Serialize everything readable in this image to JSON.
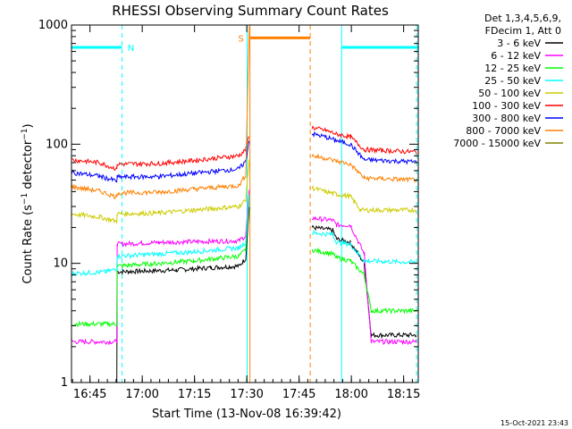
{
  "chart_data": {
    "type": "line",
    "title": "RHESSI Observing Summary Count Rates",
    "xlabel": "Start Time (13-Nov-08 16:39:42)",
    "ylabel_main": "Count Rate (s",
    "ylabel_sup1": "−1",
    "ylabel_mid": " detector",
    "ylabel_sup2": "−1",
    "ylabel_end": ")",
    "y_scale": "log",
    "ylim": [
      1,
      1000
    ],
    "x_unit": "minutes from 16:39:42",
    "xlim": [
      0,
      99.5
    ],
    "x_ticks": [
      {
        "label": "16:45",
        "value": 5.3
      },
      {
        "label": "17:00",
        "value": 20.3
      },
      {
        "label": "17:15",
        "value": 35.3
      },
      {
        "label": "17:30",
        "value": 50.3
      },
      {
        "label": "17:45",
        "value": 65.3
      },
      {
        "label": "18:00",
        "value": 80.3
      },
      {
        "label": "18:15",
        "value": 95.3
      }
    ],
    "y_ticks": [
      {
        "label": "1",
        "value": 1
      },
      {
        "label": "10",
        "value": 10
      },
      {
        "label": "100",
        "value": 100
      },
      {
        "label": "1000",
        "value": 1000
      }
    ],
    "legend_header": [
      "Det 1,3,4,5,6,9,",
      "FDecim 1, Att 0"
    ],
    "legend_position": "right",
    "footer_date": "15-Oct-2021 23:43",
    "series": [
      {
        "name": "3 - 6 keV",
        "color": "#000000",
        "segments": [
          [
            [
              0,
              1.0
            ],
            [
              13,
              1.0
            ],
            [
              13.1,
              8.5
            ],
            [
              20,
              8.6
            ],
            [
              30,
              8.8
            ],
            [
              40,
              9.2
            ],
            [
              48,
              9.5
            ],
            [
              50,
              11
            ],
            [
              51,
              30
            ]
          ],
          [
            [
              69,
              20
            ],
            [
              75,
              19
            ],
            [
              76,
              16
            ],
            [
              80,
              15
            ],
            [
              84,
              10
            ],
            [
              86,
              2.5
            ],
            [
              99,
              2.5
            ]
          ]
        ]
      },
      {
        "name": "6 - 12 keV",
        "color": "#ff00ff",
        "segments": [
          [
            [
              0,
              2.2
            ],
            [
              13,
              2.2
            ],
            [
              13.1,
              14.5
            ],
            [
              25,
              15
            ],
            [
              35,
              15.2
            ],
            [
              48,
              15.5
            ],
            [
              50,
              17
            ],
            [
              51,
              40
            ]
          ],
          [
            [
              69,
              24
            ],
            [
              75,
              23
            ],
            [
              76,
              21
            ],
            [
              80,
              21
            ],
            [
              84,
              12
            ],
            [
              86,
              2.2
            ],
            [
              99,
              2.2
            ]
          ]
        ]
      },
      {
        "name": "12 - 25 keV",
        "color": "#00ff00",
        "segments": [
          [
            [
              0,
              3.1
            ],
            [
              13,
              3.1
            ],
            [
              13.1,
              9.5
            ],
            [
              25,
              10
            ],
            [
              35,
              10.5
            ],
            [
              48,
              11.5
            ],
            [
              50,
              13
            ],
            [
              51,
              35
            ]
          ],
          [
            [
              69,
              13
            ],
            [
              75,
              12
            ],
            [
              76,
              11.2
            ],
            [
              80,
              10.5
            ],
            [
              84,
              8
            ],
            [
              86,
              4
            ],
            [
              99,
              4
            ]
          ]
        ]
      },
      {
        "name": "25 - 50 keV",
        "color": "#00ffff",
        "segments": [
          [
            [
              0,
              8.2
            ],
            [
              10,
              8.5
            ],
            [
              13,
              9
            ],
            [
              13.1,
              11.5
            ],
            [
              25,
              12
            ],
            [
              35,
              12.5
            ],
            [
              48,
              13.5
            ],
            [
              50,
              15
            ],
            [
              51,
              38
            ]
          ],
          [
            [
              69,
              18
            ],
            [
              75,
              17.5
            ],
            [
              76,
              15
            ],
            [
              80,
              14.5
            ],
            [
              84,
              10.5
            ],
            [
              99,
              10.2
            ]
          ]
        ]
      },
      {
        "name": "50 - 100 keV",
        "color": "#cccc00",
        "segments": [
          [
            [
              0,
              26
            ],
            [
              8,
              24.5
            ],
            [
              13,
              22.5
            ],
            [
              13.1,
              26
            ],
            [
              25,
              26.5
            ],
            [
              35,
              28
            ],
            [
              48,
              30
            ],
            [
              50,
              34
            ],
            [
              51,
              75
            ]
          ],
          [
            [
              69,
              43
            ],
            [
              73,
              40
            ],
            [
              76,
              38
            ],
            [
              80,
              36.5
            ],
            [
              83,
              28
            ],
            [
              99,
              28
            ]
          ]
        ]
      },
      {
        "name": "100 - 300 keV",
        "color": "#ff0000",
        "segments": [
          [
            [
              0,
              74
            ],
            [
              8,
              70
            ],
            [
              13,
              62
            ],
            [
              13.1,
              68
            ],
            [
              25,
              69
            ],
            [
              35,
              73
            ],
            [
              48,
              80
            ],
            [
              50,
              90
            ],
            [
              51,
              120
            ]
          ],
          [
            [
              69,
              138
            ],
            [
              73,
              130
            ],
            [
              76,
              122
            ],
            [
              80,
              115
            ],
            [
              84,
              90
            ],
            [
              99,
              86
            ]
          ]
        ]
      },
      {
        "name": "300 - 800 keV",
        "color": "#0000ff",
        "segments": [
          [
            [
              0,
              58
            ],
            [
              8,
              54
            ],
            [
              13,
              49
            ],
            [
              13.1,
              53
            ],
            [
              25,
              53.5
            ],
            [
              35,
              57
            ],
            [
              48,
              62
            ],
            [
              50,
              72
            ],
            [
              51,
              110
            ]
          ],
          [
            [
              69,
              122
            ],
            [
              73,
              115
            ],
            [
              76,
              107
            ],
            [
              80,
              100
            ],
            [
              84,
              74
            ],
            [
              99,
              71
            ]
          ]
        ]
      },
      {
        "name": "800 - 7000 keV",
        "color": "#ff8000",
        "segments": [
          [
            [
              0,
              44
            ],
            [
              8,
              40.5
            ],
            [
              13,
              36
            ],
            [
              13.1,
              39
            ],
            [
              25,
              39.5
            ],
            [
              35,
              42
            ],
            [
              48,
              45
            ],
            [
              50,
              55
            ],
            [
              51,
              1000
            ]
          ],
          [
            [
              69,
              80
            ],
            [
              73,
              76
            ],
            [
              76,
              72
            ],
            [
              80,
              68
            ],
            [
              84,
              52
            ],
            [
              99,
              50
            ]
          ]
        ]
      },
      {
        "name": "7000 - 15000 keV",
        "color": "#808000",
        "segments": [
          [
            [
              0,
              1.0
            ],
            [
              99.5,
              1.0
            ]
          ]
        ]
      }
    ],
    "annotation_segments": [
      {
        "label": "N",
        "color": "#00ffff",
        "x0": 0,
        "x1": 14.5,
        "y": 650
      },
      {
        "label": "S",
        "color": "#ff8000",
        "x0": 51.2,
        "x1": 68.5,
        "y": 780
      },
      {
        "label": "",
        "color": "#00ffff",
        "x0": 77.5,
        "x1": 99.5,
        "y": 650
      }
    ],
    "vlines": [
      {
        "x": 14.5,
        "color": "#00ffff",
        "style": "dash"
      },
      {
        "x": 50.4,
        "color": "#00ffff",
        "style": "solid"
      },
      {
        "x": 51.2,
        "color": "#ff8000",
        "style": "solid"
      },
      {
        "x": 68.5,
        "color": "#ff8000",
        "style": "dash"
      },
      {
        "x": 77.5,
        "color": "#00ffff",
        "style": "solid"
      },
      {
        "x": 99.0,
        "color": "#00ffff",
        "style": "dash"
      }
    ]
  }
}
